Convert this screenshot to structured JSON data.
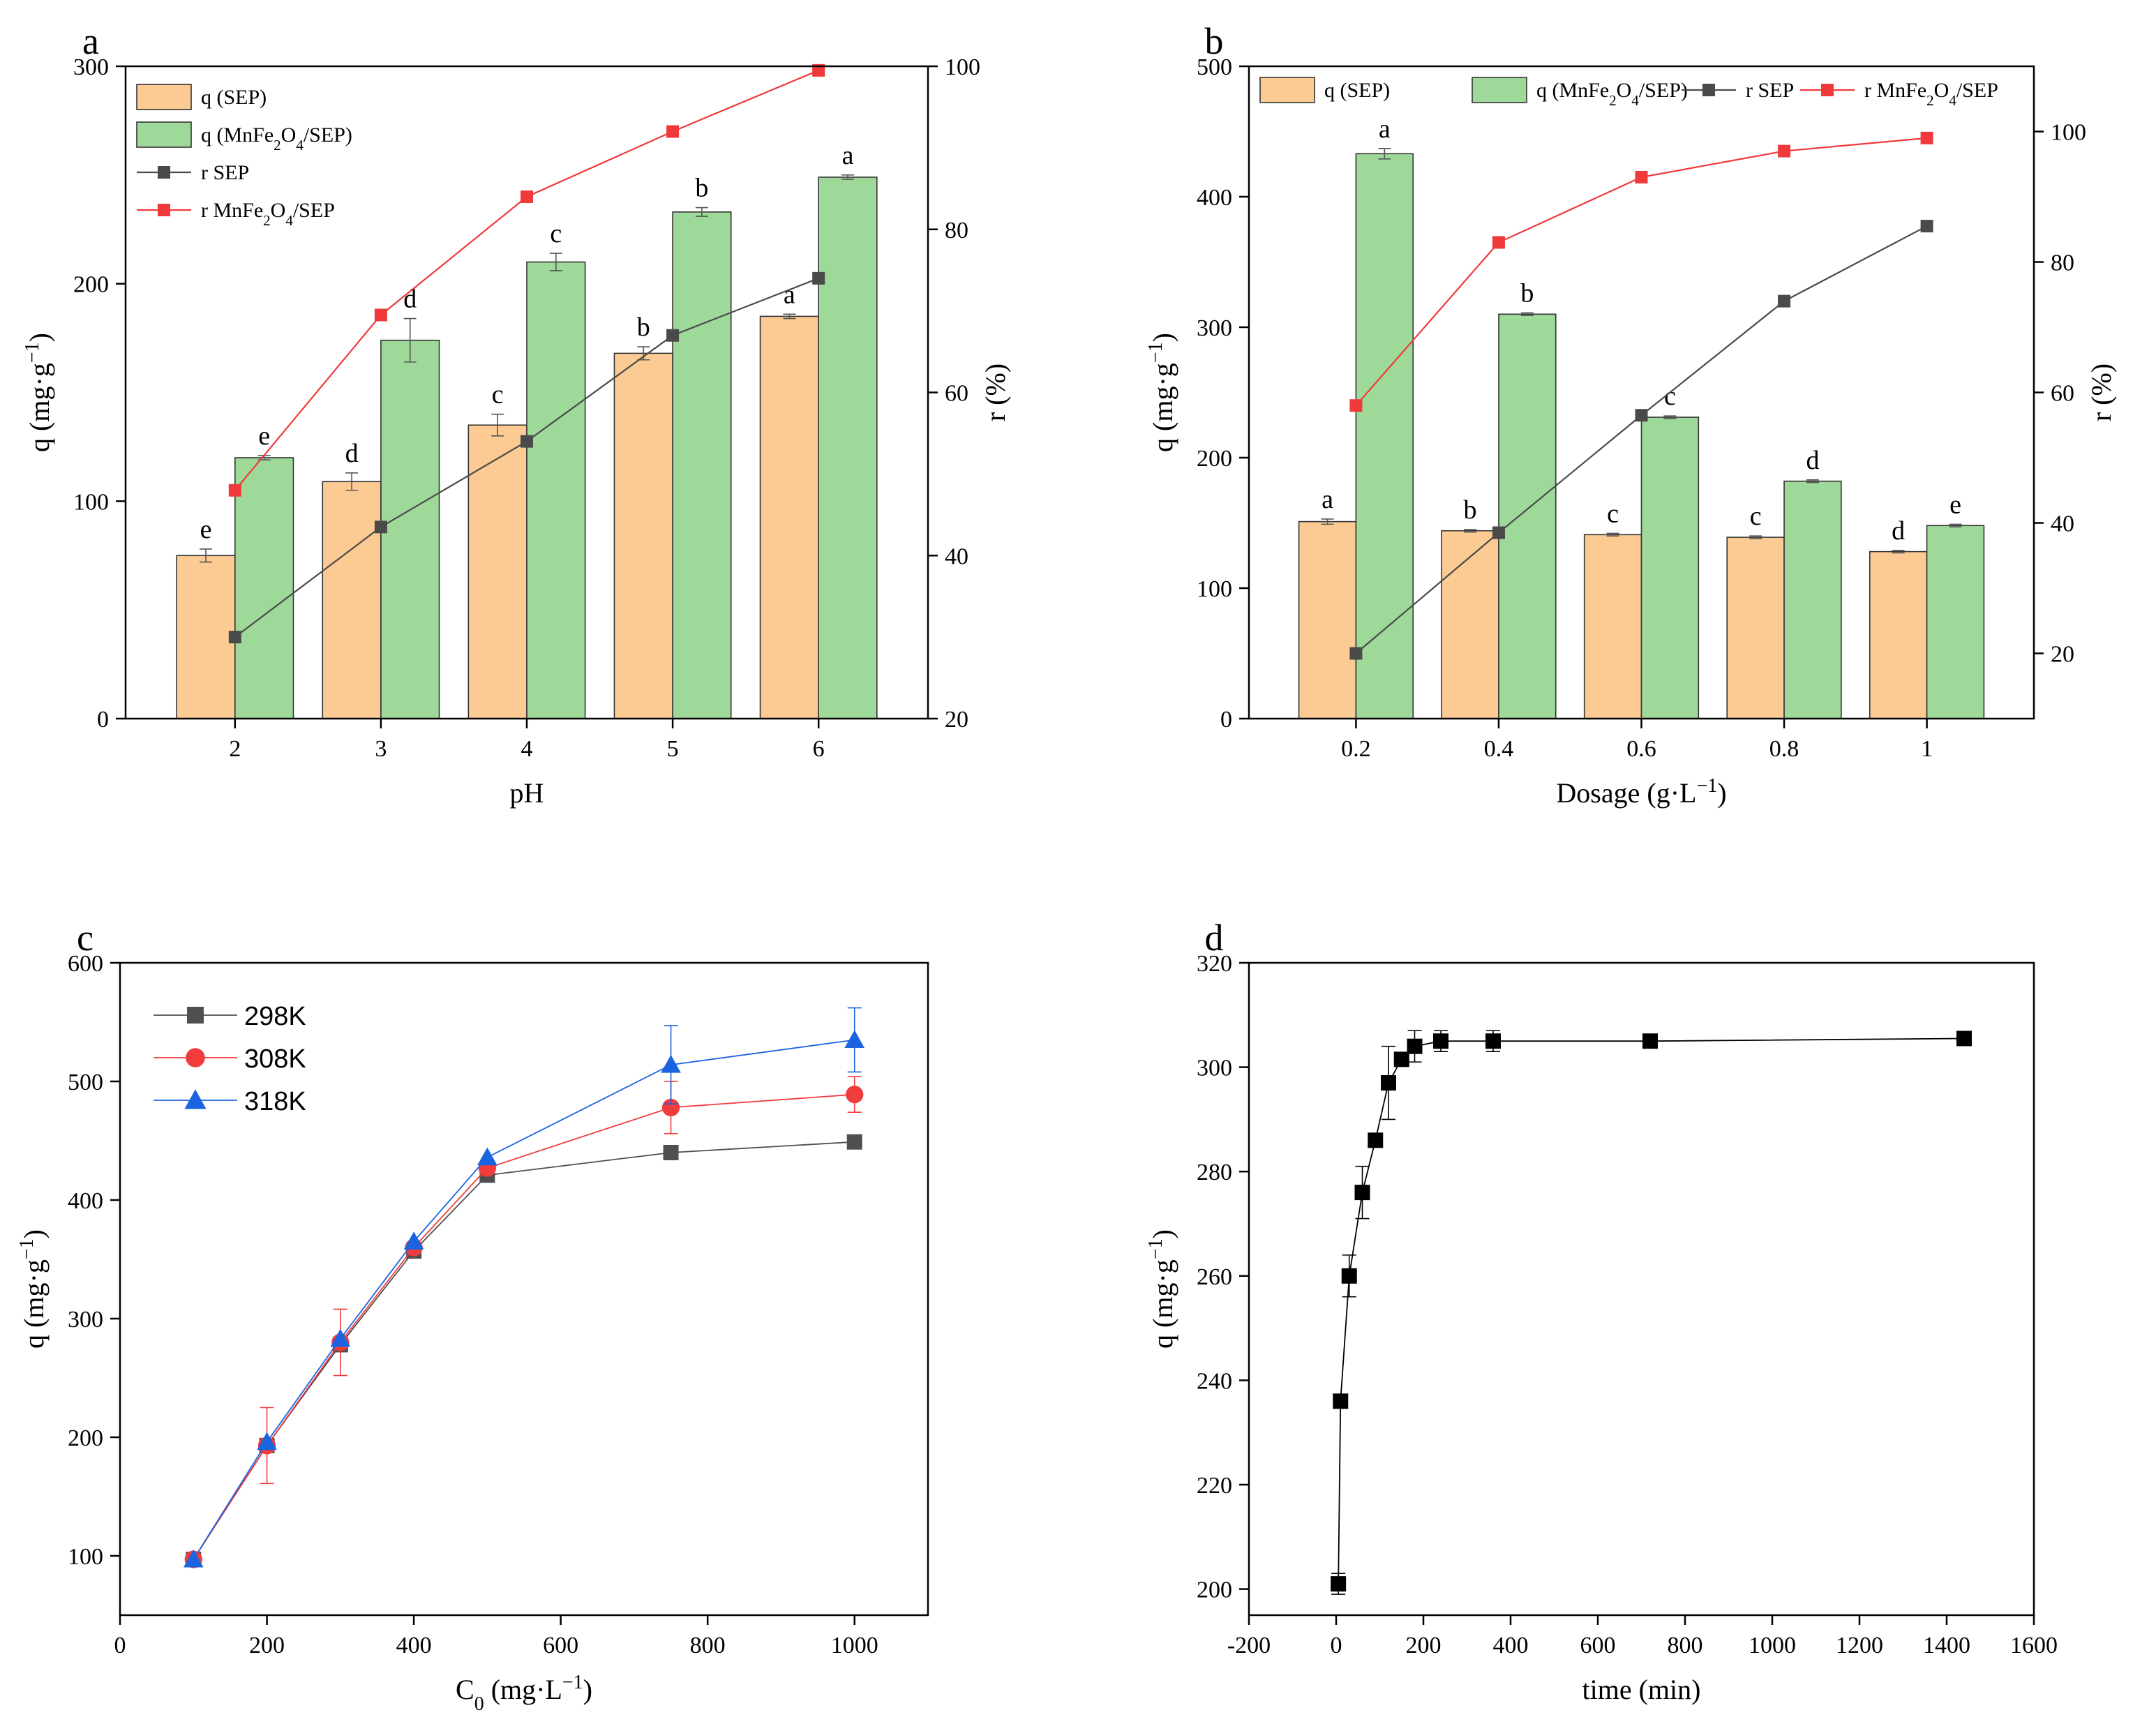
{
  "figure": {
    "panels": [
      "a",
      "b",
      "c",
      "d"
    ]
  },
  "colors": {
    "bar_sep": "#FCCB94",
    "bar_mn": "#9ED99A",
    "line_sep": "#4A4A4A",
    "line_mn": "#F0393B",
    "series_298": "#4F4F4F",
    "series_308": "#F03C3C",
    "series_318": "#1B64E0",
    "series_d": "#000000"
  },
  "chart_data": [
    {
      "panel": "a",
      "type": "bar",
      "title": "",
      "xlabel": "pH",
      "ylabel": "q (mg·g⁻¹)",
      "ylabel2": "r (%)",
      "categories": [
        "2",
        "3",
        "4",
        "5",
        "6"
      ],
      "ylim": [
        0,
        300
      ],
      "y2lim": [
        20,
        100
      ],
      "yticks": [
        0,
        100,
        200,
        300
      ],
      "y2ticks": [
        20,
        40,
        60,
        80,
        100
      ],
      "legend": [
        "q (SEP)",
        "q (MnFe₂O₄/SEP)",
        "r SEP",
        "r MnFe₂O₄/SEP"
      ],
      "series": [
        {
          "name": "q (SEP)",
          "axis": "left",
          "kind": "bar",
          "values": [
            75,
            109,
            135,
            168,
            185
          ],
          "errors": [
            3,
            4,
            5,
            3,
            1
          ],
          "letters": [
            "e",
            "d",
            "c",
            "b",
            "a"
          ]
        },
        {
          "name": "q (MnFe₂O₄/SEP)",
          "axis": "left",
          "kind": "bar",
          "values": [
            120,
            174,
            210,
            233,
            249
          ],
          "errors": [
            1,
            10,
            4,
            2,
            1
          ],
          "letters": [
            "e",
            "d",
            "c",
            "b",
            "a"
          ]
        },
        {
          "name": "r SEP",
          "axis": "right",
          "kind": "line",
          "values": [
            30,
            43.5,
            54,
            67,
            74
          ]
        },
        {
          "name": "r MnFe₂O₄/SEP",
          "axis": "right",
          "kind": "line",
          "values": [
            48,
            69.5,
            84,
            92,
            99.5
          ]
        }
      ]
    },
    {
      "panel": "b",
      "type": "bar",
      "title": "",
      "xlabel": "Dosage (g·L⁻¹)",
      "ylabel": "q (mg·g⁻¹)",
      "ylabel2": "r (%)",
      "categories": [
        "0.2",
        "0.4",
        "0.6",
        "0.8",
        "1"
      ],
      "ylim": [
        0,
        500
      ],
      "y2lim": [
        10,
        110
      ],
      "yticks": [
        0,
        100,
        200,
        300,
        400,
        500
      ],
      "y2ticks": [
        20,
        40,
        60,
        80,
        100
      ],
      "legend": [
        "q (SEP)",
        "q (MnFe₂O₄/SEP)",
        "r SEP",
        "r MnFe₂O₄/SEP"
      ],
      "series": [
        {
          "name": "q (SEP)",
          "axis": "left",
          "kind": "bar",
          "values": [
            151,
            144,
            141,
            139,
            128
          ],
          "errors": [
            2,
            1,
            1,
            1,
            1
          ],
          "letters": [
            "a",
            "b",
            "c",
            "c",
            "d"
          ]
        },
        {
          "name": "q (MnFe₂O₄/SEP)",
          "axis": "left",
          "kind": "bar",
          "values": [
            433,
            310,
            231,
            182,
            148
          ],
          "errors": [
            4,
            1,
            1,
            1,
            1
          ],
          "letters": [
            "a",
            "b",
            "c",
            "d",
            "e"
          ]
        },
        {
          "name": "r SEP",
          "axis": "right",
          "kind": "line",
          "values": [
            20,
            38.5,
            56.5,
            74,
            85.5
          ]
        },
        {
          "name": "r MnFe₂O₄/SEP",
          "axis": "right",
          "kind": "line",
          "values": [
            58,
            83,
            93,
            97,
            99
          ]
        }
      ]
    },
    {
      "panel": "c",
      "type": "line",
      "title": "",
      "xlabel": "C₀ (mg·L⁻¹)",
      "ylabel": "q (mg·g⁻¹)",
      "xlim": [
        0,
        1100
      ],
      "ylim": [
        50,
        600
      ],
      "xticks": [
        0,
        200,
        400,
        600,
        800,
        1000
      ],
      "yticks": [
        100,
        200,
        300,
        400,
        500,
        600
      ],
      "legend": [
        "298K",
        "308K",
        "318K"
      ],
      "x": [
        100,
        200,
        300,
        400,
        500,
        750,
        1000
      ],
      "series": [
        {
          "name": "298K",
          "marker": "square",
          "values": [
            97,
            193,
            278,
            357,
            421,
            440,
            449
          ],
          "errors": [
            0,
            0,
            0,
            0,
            0,
            0,
            0
          ]
        },
        {
          "name": "308K",
          "marker": "circle",
          "values": [
            97,
            193,
            280,
            360,
            427,
            478,
            489
          ],
          "errors": [
            0,
            32,
            28,
            0,
            0,
            22,
            15
          ]
        },
        {
          "name": "318K",
          "marker": "triangle",
          "values": [
            97,
            196,
            283,
            365,
            436,
            514,
            535
          ],
          "errors": [
            0,
            0,
            0,
            0,
            0,
            33,
            27
          ]
        }
      ]
    },
    {
      "panel": "d",
      "type": "line",
      "title": "",
      "xlabel": "time (min)",
      "ylabel": "q (mg·g⁻¹)",
      "xlim": [
        -200,
        1600
      ],
      "ylim": [
        195,
        320
      ],
      "xticks": [
        -200,
        0,
        200,
        400,
        600,
        800,
        1000,
        1200,
        1400,
        1600
      ],
      "yticks": [
        200,
        220,
        240,
        260,
        280,
        300,
        320
      ],
      "x": [
        5,
        10,
        30,
        60,
        90,
        120,
        150,
        180,
        240,
        360,
        720,
        1440
      ],
      "series": [
        {
          "name": "q",
          "marker": "square",
          "values": [
            201,
            236,
            260,
            276,
            286,
            297,
            301.5,
            304,
            305,
            305,
            305,
            305.5
          ],
          "errors": [
            2,
            1,
            4,
            5,
            1,
            7,
            1,
            3,
            2,
            2,
            1,
            1
          ]
        }
      ]
    }
  ]
}
